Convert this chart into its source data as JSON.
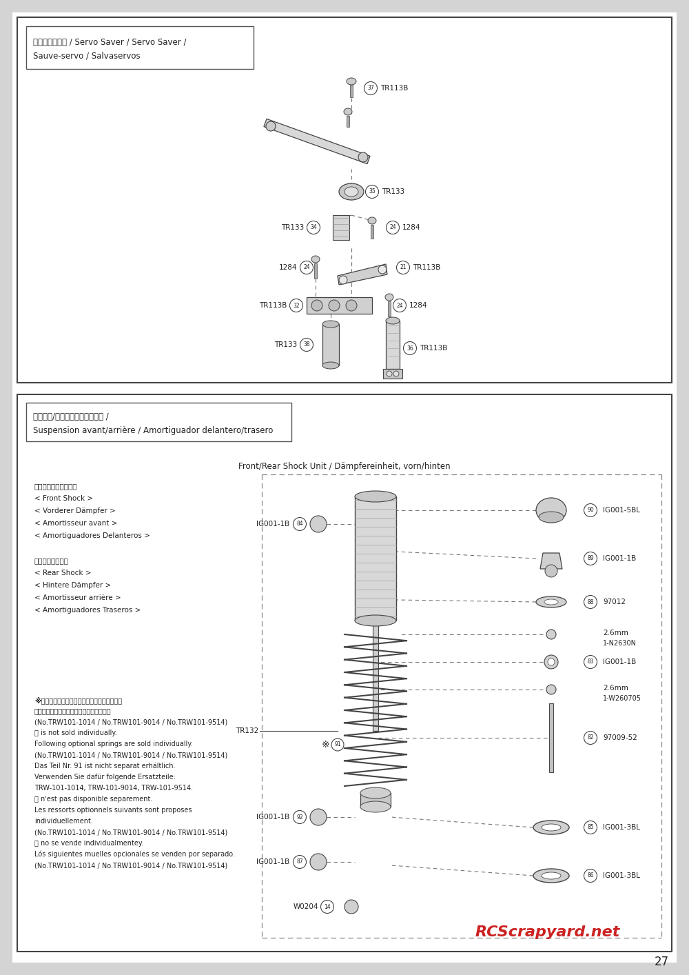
{
  "page_number": "27",
  "bg_gray": "#d4d4d4",
  "bg_white": "#ffffff",
  "fc": "#222222",
  "lc": "#444444",
  "section1": {
    "title_line1": "サーボセイバー / Servo Saver / Servo Saver /",
    "title_line2": "Sauve-servo / Salvaservos"
  },
  "section2": {
    "title_line1": "フロント/リヤダンパーユニット /",
    "title_line2": "Suspension avant/arrière / Amortiguador delantero/trasero",
    "subtitle": "Front/Rear Shock Unit / Dämpfereinheit, vorn/hinten",
    "left_texts": [
      "＜フロントダンパー＞",
      "< Front Shock >",
      "< Vorderer Dämpfer >",
      "< Amortisseur avant >",
      "< Amortiguadores Delanteros >",
      "",
      "＜リヤダンパー＞",
      "< Rear Shock >",
      "< Hintere Dämpfer >",
      "< Amortisseur arrière >",
      "< Amortiguadores Traseros >"
    ],
    "note_texts": [
      "※⒑は単体でのパーツ販売はしておりません。",
      "オプションパーツをお買い求めください。",
      "(No.TRW101-1014 / No.TRW101-9014 / No.TRW101-9514)",
      "⒑ is not sold individually.",
      "Following optional springs are sold individually.",
      "(No.TRW101-1014 / No.TRW101-9014 / No.TRW101-9514)",
      "Das Teil Nr. 91 ist nicht separat erhältlich.",
      "Verwenden Sie dafür folgende Ersatzteile:",
      "TRW-101-1014, TRW-101-9014, TRW-101-9514.",
      "⒑ n'est pas disponible separement.",
      "Les ressorts optionnels suivants sont proposes",
      "individuellement.",
      "(No.TRW101-1014 / No.TRW101-9014 / No.TRW101-9514)",
      "⒑ no se vende individualmentey.",
      "Lós siguientes muelles opcionales se venden por separado.",
      "(No.TRW101-1014 / No.TRW101-9014 / No.TRW101-9514)"
    ]
  },
  "watermark": "RCScrapyard.net"
}
